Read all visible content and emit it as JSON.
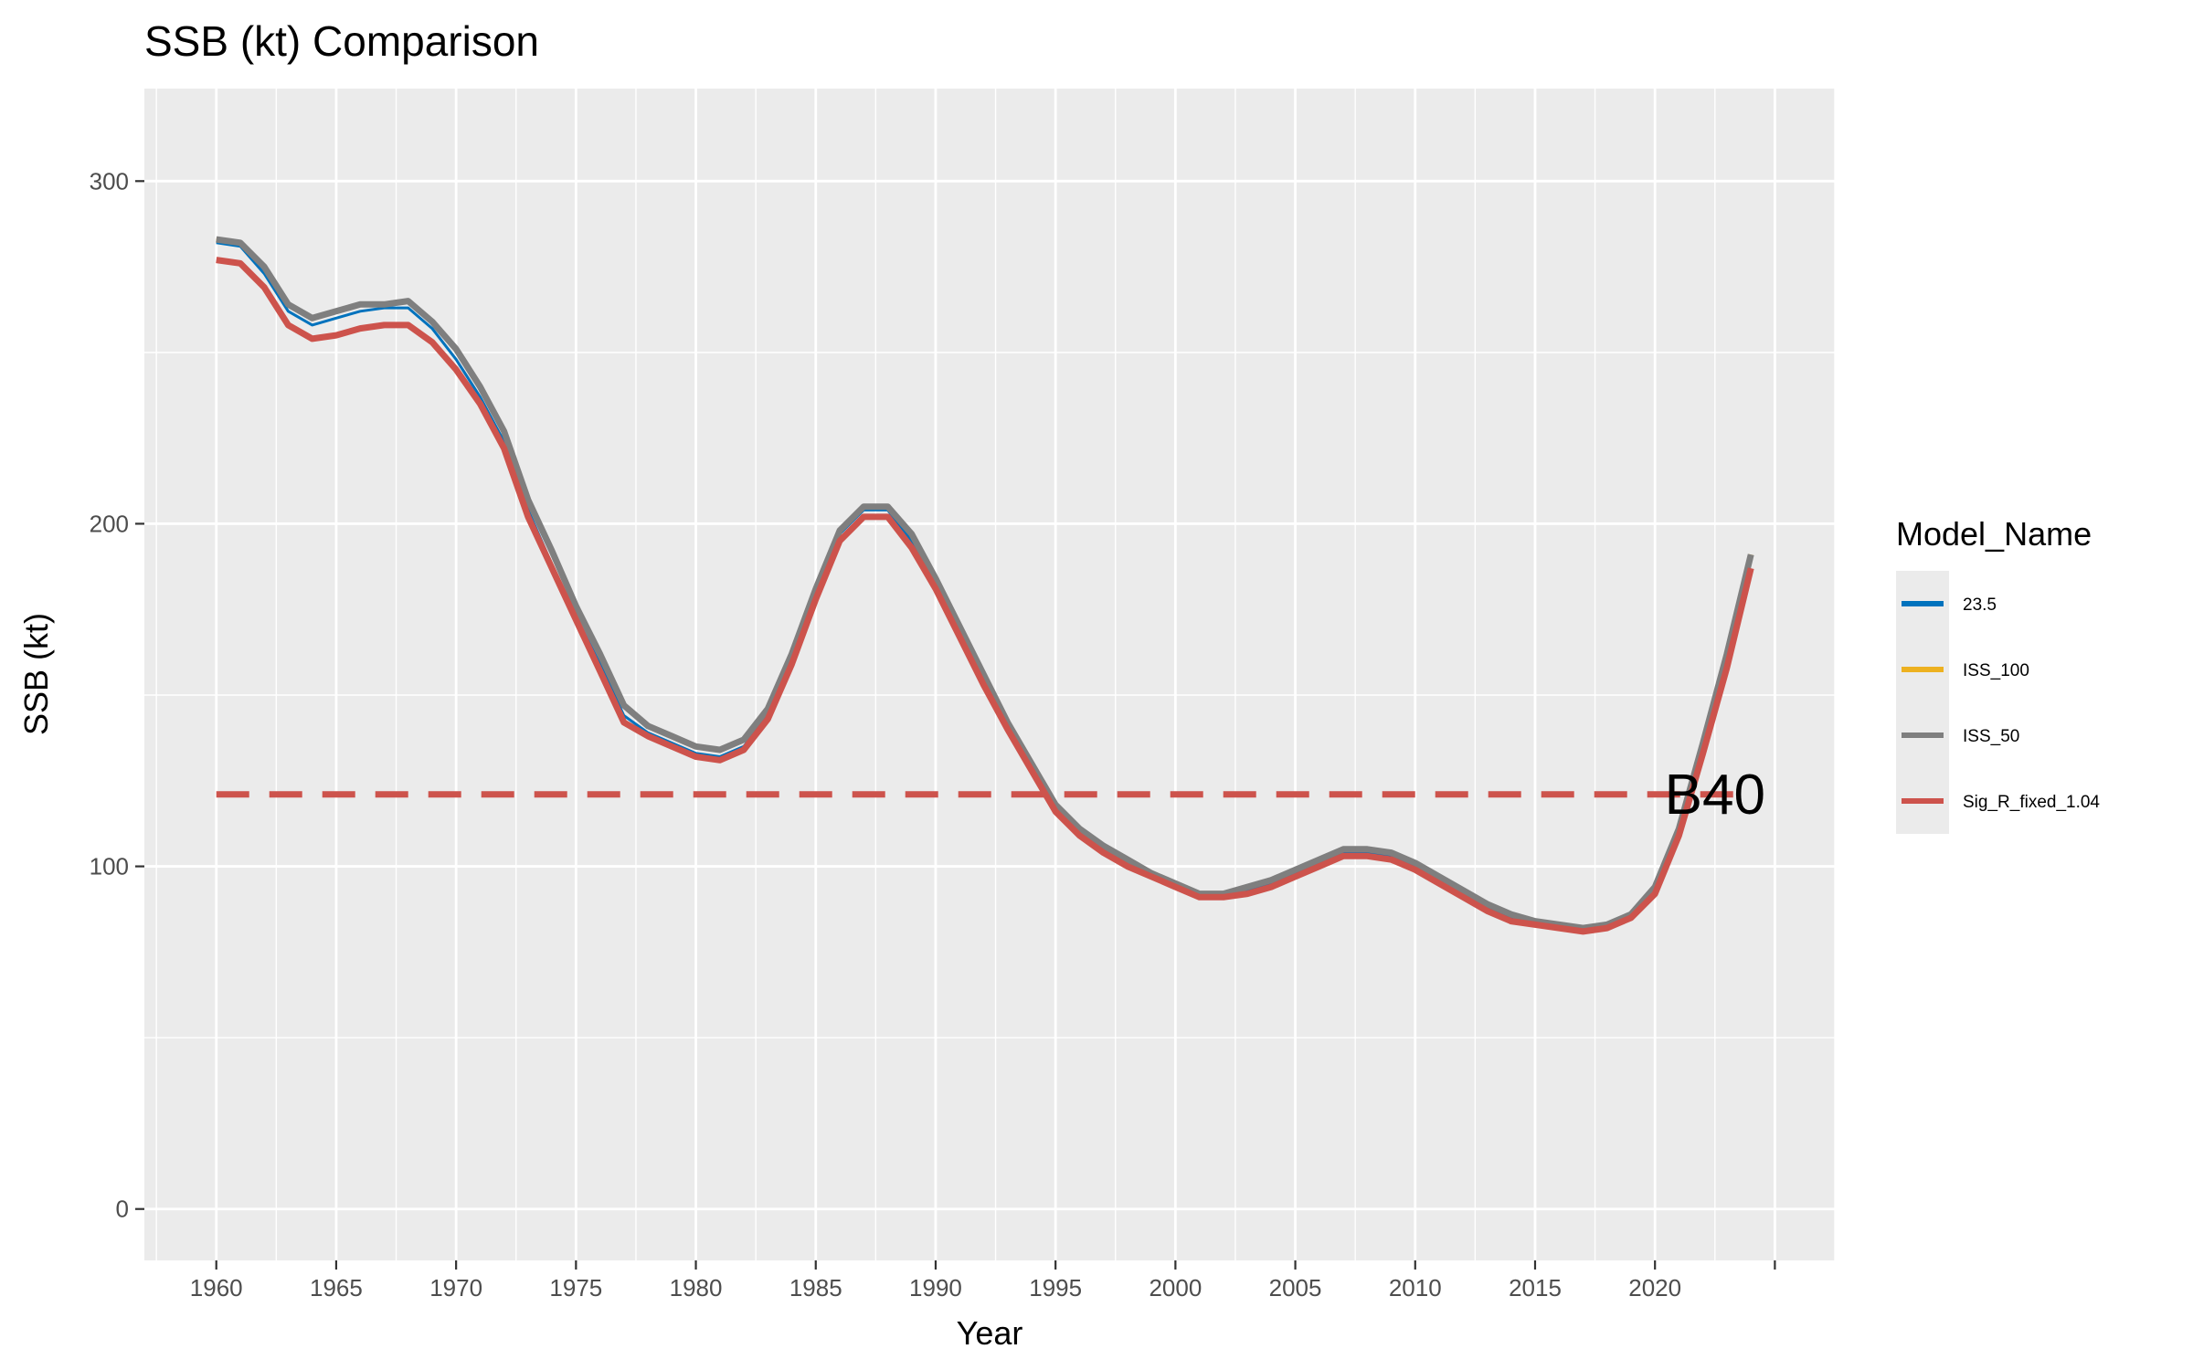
{
  "chart_data": {
    "type": "line",
    "title": "SSB (kt) Comparison",
    "xlabel": "Year",
    "ylabel": "SSB (kt)",
    "xlim": [
      1957,
      2027.5
    ],
    "ylim": [
      -15,
      327
    ],
    "x_ticks": [
      1960,
      1965,
      1970,
      1975,
      1980,
      1985,
      1990,
      1995,
      2000,
      2005,
      2010,
      2015,
      2020
    ],
    "y_ticks": [
      0,
      100,
      200,
      300
    ],
    "grid": true,
    "legend": {
      "title": "Model_Name",
      "position": "right"
    },
    "x": [
      1960,
      1961,
      1962,
      1963,
      1964,
      1965,
      1966,
      1967,
      1968,
      1969,
      1970,
      1971,
      1972,
      1973,
      1974,
      1975,
      1976,
      1977,
      1978,
      1979,
      1980,
      1981,
      1982,
      1983,
      1984,
      1985,
      1986,
      1987,
      1988,
      1989,
      1990,
      1991,
      1992,
      1993,
      1994,
      1995,
      1996,
      1997,
      1998,
      1999,
      2000,
      2001,
      2002,
      2003,
      2004,
      2005,
      2006,
      2007,
      2008,
      2009,
      2010,
      2011,
      2012,
      2013,
      2014,
      2015,
      2016,
      2017,
      2018,
      2019,
      2020,
      2021,
      2022,
      2023,
      2024
    ],
    "series": [
      {
        "name": "23.5",
        "color": "#0072BD",
        "width": 3,
        "values": [
          282,
          281,
          273,
          262,
          258,
          260,
          262,
          263,
          263,
          257,
          248,
          237,
          224,
          204,
          188,
          173,
          159,
          144,
          139,
          136,
          133,
          132,
          135,
          144,
          160,
          179,
          197,
          204,
          204,
          195,
          182,
          168,
          154,
          140,
          128,
          117,
          110,
          105,
          101,
          97,
          94,
          92,
          92,
          93,
          95,
          98,
          101,
          104,
          104,
          103,
          100,
          96,
          92,
          88,
          85,
          84,
          83,
          82,
          82,
          85,
          93,
          110,
          135,
          160,
          190
        ]
      },
      {
        "name": "ISS_100",
        "color": "#EDB120",
        "width": 6,
        "values": [
          283,
          282,
          275,
          264,
          260,
          262,
          264,
          264,
          265,
          259,
          251,
          240,
          227,
          207,
          192,
          176,
          162,
          147,
          141,
          138,
          135,
          134,
          137,
          146,
          162,
          181,
          198,
          205,
          205,
          197,
          184,
          170,
          156,
          142,
          130,
          118,
          111,
          106,
          102,
          98,
          95,
          92,
          92,
          94,
          96,
          99,
          102,
          105,
          105,
          104,
          101,
          97,
          93,
          89,
          86,
          84,
          83,
          82,
          83,
          86,
          94,
          111,
          136,
          162,
          191
        ]
      },
      {
        "name": "ISS_50",
        "color": "#7F7F7F",
        "width": 7,
        "values": [
          283,
          282,
          275,
          264,
          260,
          262,
          264,
          264,
          265,
          259,
          251,
          240,
          227,
          207,
          192,
          176,
          162,
          147,
          141,
          138,
          135,
          134,
          137,
          146,
          162,
          181,
          198,
          205,
          205,
          197,
          184,
          170,
          156,
          142,
          130,
          118,
          111,
          106,
          102,
          98,
          95,
          92,
          92,
          94,
          96,
          99,
          102,
          105,
          105,
          104,
          101,
          97,
          93,
          89,
          86,
          84,
          83,
          82,
          83,
          86,
          94,
          111,
          136,
          162,
          191
        ]
      },
      {
        "name": "Sig_R_fixed_1.04",
        "color": "#CD534C",
        "width": 7,
        "values": [
          277,
          276,
          269,
          258,
          254,
          255,
          257,
          258,
          258,
          253,
          245,
          235,
          222,
          202,
          187,
          172,
          157,
          142,
          138,
          135,
          132,
          131,
          134,
          143,
          159,
          178,
          195,
          202,
          202,
          193,
          181,
          167,
          153,
          140,
          128,
          116,
          109,
          104,
          100,
          97,
          94,
          91,
          91,
          92,
          94,
          97,
          100,
          103,
          103,
          102,
          99,
          95,
          91,
          87,
          84,
          83,
          82,
          81,
          82,
          85,
          92,
          109,
          133,
          158,
          187
        ]
      }
    ],
    "reference_line": {
      "label": "B40",
      "y": 121,
      "x_range": [
        1960,
        2024
      ],
      "color": "#CD534C",
      "style": "dashed"
    }
  }
}
